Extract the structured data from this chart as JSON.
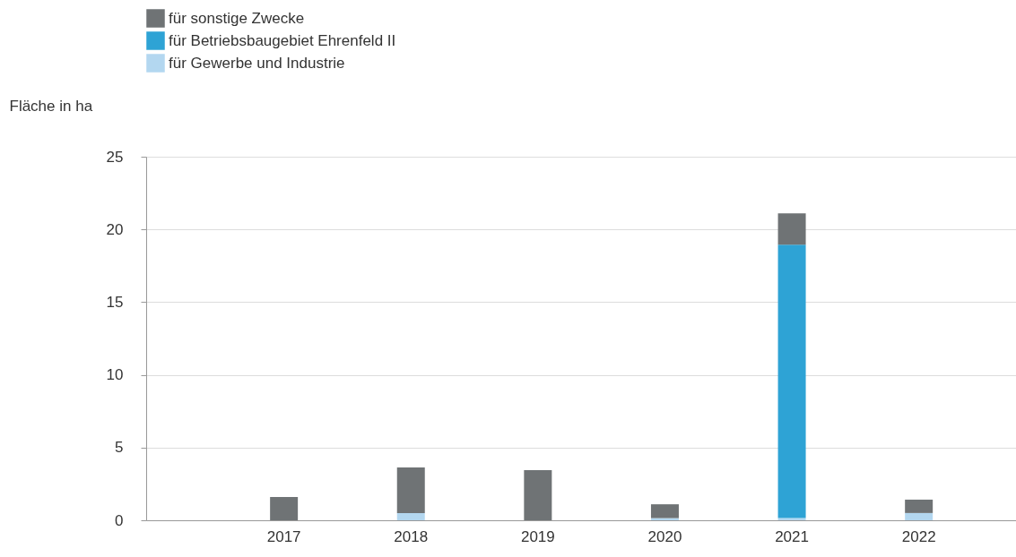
{
  "chart_data": {
    "type": "bar",
    "stacked": true,
    "ylabel": "Fläche in ha",
    "categories": [
      "2017",
      "2018",
      "2019",
      "2020",
      "2021",
      "2022"
    ],
    "series": [
      {
        "name": "für Gewerbe und Industrie",
        "color": "#b3d7f0",
        "values": [
          0,
          0.5,
          0,
          0.15,
          0.15,
          0.5
        ]
      },
      {
        "name": "für Betriebsbaugebiet Ehrenfeld II",
        "color": "#2ea3d5",
        "values": [
          0,
          0,
          0,
          0,
          18.8,
          0
        ]
      },
      {
        "name": "für sonstige Zwecke",
        "color": "#6f7375",
        "values": [
          1.6,
          3.13,
          3.45,
          0.95,
          2.15,
          0.92
        ]
      }
    ],
    "ylim": [
      0,
      25
    ],
    "yticks": [
      0,
      5,
      10,
      15,
      20,
      25
    ],
    "grid": "y",
    "legend": "top left"
  }
}
